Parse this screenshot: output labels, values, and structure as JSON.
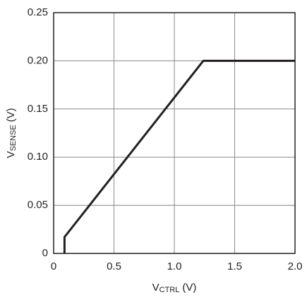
{
  "chart_data": {
    "type": "line",
    "xlabel": {
      "v": "V",
      "sub": "CTRL",
      "unit": "(V)"
    },
    "ylabel": {
      "v": "V",
      "sub": "SENSE",
      "unit": "(V)"
    },
    "x": [
      0.09,
      0.09,
      1.24,
      2.0
    ],
    "values": [
      0,
      0.017,
      0.2,
      0.2
    ],
    "color": "#231f20",
    "xlim": [
      0,
      2.0
    ],
    "ylim": [
      0,
      0.25
    ],
    "xticks": [
      0,
      0.5,
      {
        "value": 1.0,
        "label": "1.0"
      },
      1.5,
      {
        "value": 2.0,
        "label": "2.0"
      }
    ],
    "yticks": [
      0,
      0.05,
      {
        "value": 0.1,
        "label": "0.10"
      },
      0.15,
      {
        "value": 0.2,
        "label": "0.20"
      },
      0.25
    ],
    "grid": true
  }
}
